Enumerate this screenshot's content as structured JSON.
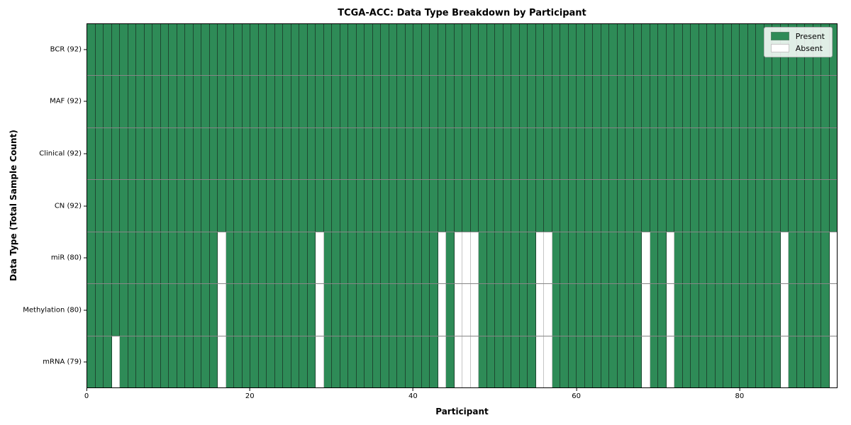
{
  "chart_data": {
    "type": "heatmap",
    "title": "TCGA-ACC: Data Type Breakdown by Participant",
    "xlabel": "Participant",
    "ylabel": "Data Type (Total Sample Count)",
    "n_participants": 92,
    "xlim": [
      0,
      92
    ],
    "x_ticks": [
      0,
      20,
      40,
      60,
      80
    ],
    "grid": "cell-edges",
    "legend_position": "upper right",
    "rows": [
      {
        "label": "BCR (92)",
        "data_type": "BCR",
        "present_count": 92,
        "absent_columns": []
      },
      {
        "label": "MAF (92)",
        "data_type": "MAF",
        "present_count": 92,
        "absent_columns": []
      },
      {
        "label": "Clinical (92)",
        "data_type": "Clinical",
        "present_count": 92,
        "absent_columns": []
      },
      {
        "label": "CN (92)",
        "data_type": "CN",
        "present_count": 92,
        "absent_columns": []
      },
      {
        "label": "miR (80)",
        "data_type": "miR",
        "present_count": 80,
        "absent_columns": [
          16,
          28,
          43,
          45,
          46,
          47,
          55,
          56,
          68,
          71,
          85,
          91
        ]
      },
      {
        "label": "Methylation (80)",
        "data_type": "Methylation",
        "present_count": 80,
        "absent_columns": [
          16,
          28,
          43,
          45,
          46,
          47,
          55,
          56,
          68,
          71,
          85,
          91
        ]
      },
      {
        "label": "mRNA (79)",
        "data_type": "mRNA",
        "present_count": 79,
        "absent_columns": [
          3,
          16,
          28,
          43,
          45,
          46,
          47,
          55,
          56,
          68,
          71,
          85,
          91
        ]
      }
    ],
    "legend": {
      "entries": [
        {
          "label": "Present",
          "color": "#2e8b57"
        },
        {
          "label": "Absent",
          "color": "#ffffff"
        }
      ]
    },
    "colors": {
      "present": "#2e8b57",
      "absent": "#ffffff",
      "axis": "#000000",
      "cell_edge": "rgba(18,18,18,0.55)"
    }
  }
}
